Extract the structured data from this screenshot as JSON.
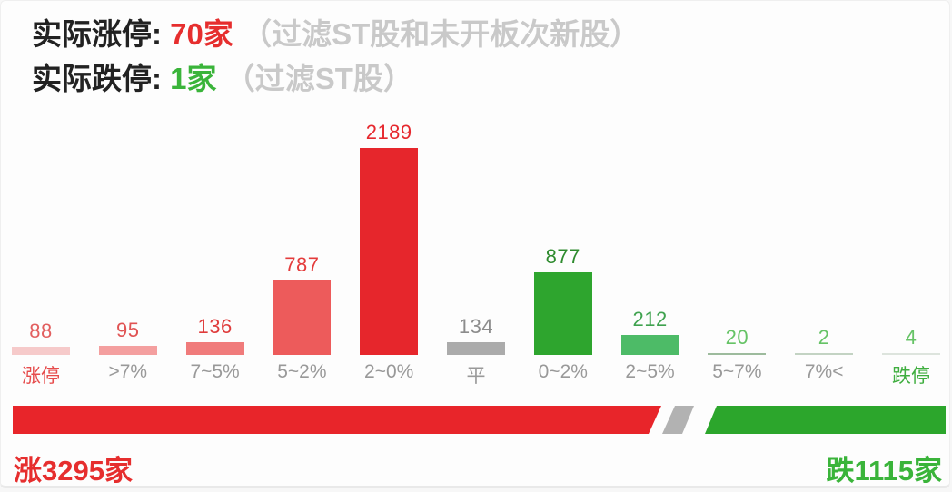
{
  "header": {
    "line1": {
      "label": "实际涨停: ",
      "value": "70家",
      "note": "（过滤ST股和未开板次新股）"
    },
    "line2": {
      "label": "实际跌停: ",
      "value": "1家",
      "note": "（过滤ST股）"
    }
  },
  "chart_data": {
    "type": "bar",
    "categories": [
      "涨停",
      ">7%",
      "7~5%",
      "5~2%",
      "2~0%",
      "平",
      "0~2%",
      "2~5%",
      "5~7%",
      "7%<",
      "跌停"
    ],
    "values": [
      88,
      95,
      136,
      787,
      2189,
      134,
      877,
      212,
      20,
      2,
      4
    ],
    "bar_colors": [
      "#f6caca",
      "#f49f9f",
      "#f07b7b",
      "#ed5b5b",
      "#e6262c",
      "#ababab",
      "#2ea52e",
      "#4dbb67",
      "#9dbb9d",
      "#c3d3c3",
      "#dde4dd"
    ],
    "value_colors": [
      "#e25f5f",
      "#e05353",
      "#df3b3b",
      "#e43c3c",
      "#e6282e",
      "#8c8c8c",
      "#2e8b2e",
      "#3fa24f",
      "#66c366",
      "#66c366",
      "#66c366"
    ],
    "category_colors": [
      "#e64c4c",
      "#999999",
      "#999999",
      "#999999",
      "#999999",
      "#999999",
      "#999999",
      "#999999",
      "#999999",
      "#999999",
      "#3fae3f"
    ],
    "title": "",
    "xlabel": "",
    "ylabel": "",
    "ylim": [
      0,
      2300
    ],
    "grid": false,
    "legend": false,
    "value_labels_shown": true
  },
  "summary_bar": {
    "up_label": "涨3295家",
    "down_label": "跌1115家",
    "up_count": 3295,
    "flat_count": 134,
    "down_count": 1115,
    "colors": {
      "up": "#e8252a",
      "flat": "#b2b2b2",
      "down": "#2ca62c"
    }
  }
}
